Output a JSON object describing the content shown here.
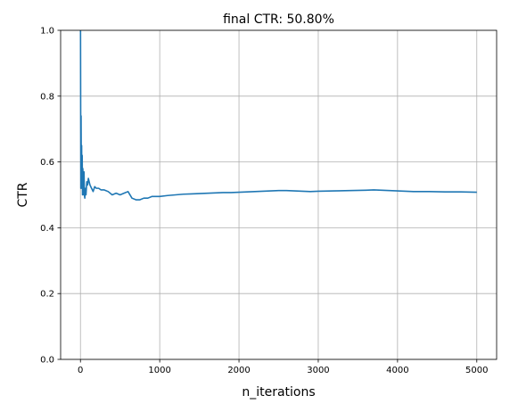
{
  "chart_data": {
    "type": "line",
    "title": "final CTR: 50.80%",
    "xlabel": "n_iterations",
    "ylabel": "CTR",
    "xlim": [
      -250,
      5250
    ],
    "ylim": [
      0.0,
      1.0
    ],
    "grid": true,
    "x_ticks": [
      0,
      1000,
      2000,
      3000,
      4000,
      5000
    ],
    "y_ticks": [
      0.0,
      0.2,
      0.4,
      0.6,
      0.8,
      1.0
    ],
    "x_tick_labels": [
      "0",
      "1000",
      "2000",
      "3000",
      "4000",
      "5000"
    ],
    "y_tick_labels": [
      "0.0",
      "0.2",
      "0.4",
      "0.6",
      "0.8",
      "1.0"
    ],
    "series": [
      {
        "color": "#1f77b4",
        "x": [
          1,
          5,
          8,
          10,
          12,
          15,
          18,
          22,
          26,
          30,
          35,
          40,
          45,
          50,
          55,
          60,
          70,
          80,
          90,
          100,
          120,
          140,
          160,
          180,
          200,
          230,
          260,
          300,
          350,
          400,
          450,
          500,
          550,
          600,
          650,
          700,
          750,
          800,
          850,
          900,
          1000,
          1100,
          1200,
          1300,
          1400,
          1500,
          1600,
          1700,
          1800,
          1900,
          2000,
          2100,
          2200,
          2300,
          2400,
          2500,
          2600,
          2700,
          2800,
          2900,
          3000,
          3200,
          3400,
          3600,
          3700,
          3800,
          4000,
          4200,
          4400,
          4600,
          4800,
          5000
        ],
        "y": [
          1.0,
          0.52,
          0.74,
          0.6,
          0.55,
          0.65,
          0.52,
          0.62,
          0.5,
          0.58,
          0.55,
          0.5,
          0.57,
          0.5,
          0.49,
          0.52,
          0.5,
          0.54,
          0.53,
          0.55,
          0.53,
          0.52,
          0.51,
          0.525,
          0.52,
          0.52,
          0.515,
          0.515,
          0.51,
          0.5,
          0.505,
          0.5,
          0.505,
          0.51,
          0.49,
          0.485,
          0.485,
          0.49,
          0.49,
          0.495,
          0.495,
          0.498,
          0.5,
          0.502,
          0.503,
          0.504,
          0.505,
          0.506,
          0.507,
          0.507,
          0.508,
          0.509,
          0.51,
          0.511,
          0.512,
          0.513,
          0.513,
          0.512,
          0.511,
          0.51,
          0.511,
          0.512,
          0.513,
          0.514,
          0.515,
          0.514,
          0.512,
          0.51,
          0.51,
          0.509,
          0.509,
          0.508
        ]
      }
    ]
  }
}
